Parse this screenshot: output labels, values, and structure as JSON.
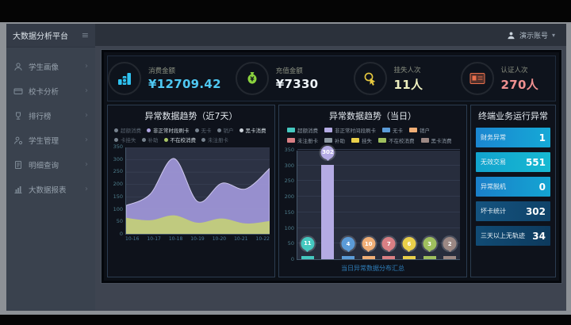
{
  "app_title": "大数据分析平台",
  "topbar": {
    "user_label": "演示账号"
  },
  "sidebar": {
    "items": [
      {
        "id": "student-portrait",
        "icon": "student-icon",
        "label": "学生画像"
      },
      {
        "id": "card-analysis",
        "icon": "card-icon",
        "label": "校卡分析"
      },
      {
        "id": "ranking",
        "icon": "trophy-icon",
        "label": "排行榜"
      },
      {
        "id": "student-manage",
        "icon": "manage-icon",
        "label": "学生管理"
      },
      {
        "id": "detail-query",
        "icon": "doc-icon",
        "label": "明细查询"
      },
      {
        "id": "bigdata-report",
        "icon": "report-icon",
        "label": "大数据报表"
      }
    ]
  },
  "kpis": [
    {
      "id": "consume",
      "icon": "coin-stack-icon",
      "label": "消费金额",
      "value": "¥12709.42",
      "color": "#2fc3f2",
      "value_color": "#4fc8f2"
    },
    {
      "id": "recharge",
      "icon": "money-bag-icon",
      "label": "充值金额",
      "value": "¥7330",
      "color": "#8bd33e",
      "value_color": "#eef4f8"
    },
    {
      "id": "loss",
      "icon": "hand-click-icon",
      "label": "挂失人次",
      "value": "11人",
      "color": "#e7c93f",
      "value_color": "#eef0c0"
    },
    {
      "id": "auth",
      "icon": "id-card-icon",
      "label": "认证人次",
      "value": "270人",
      "color": "#ea6f4c",
      "value_color": "#f09090"
    }
  ],
  "chart_data": [
    {
      "type": "area",
      "title": "异常数据趋势（近7天）",
      "x": [
        "10-16",
        "10-17",
        "10-18",
        "10-19",
        "10-20",
        "10-21",
        "10-22"
      ],
      "ylim": [
        0,
        350
      ],
      "yticks": [
        0,
        50,
        100,
        150,
        200,
        250,
        300,
        350
      ],
      "grid": true,
      "legend_position": "top",
      "legend": [
        {
          "label": "超额消费",
          "color": "#4fc7bd",
          "active": false
        },
        {
          "label": "非正常时段刷卡",
          "color": "#b0a6e3",
          "active": true
        },
        {
          "label": "无卡",
          "color": "#6aa4de",
          "active": false
        },
        {
          "label": "销户",
          "color": "#f2b37c",
          "active": false
        },
        {
          "label": "黑卡消费",
          "color": "#cdd3da",
          "active": true
        },
        {
          "label": "卡挂失",
          "color": "#ecd24f",
          "active": false
        },
        {
          "label": "补助",
          "color": "#8b97a0",
          "active": false
        },
        {
          "label": "不在校消费",
          "color": "#a9c566",
          "active": true
        },
        {
          "label": "未注册卡",
          "color": "#dd8186",
          "active": false
        }
      ],
      "series": [
        {
          "name": "非正常时段刷卡",
          "color": "#9d95d6",
          "stroke": "#cfc9ee",
          "values": [
            115,
            160,
            305,
            130,
            205,
            182,
            265
          ]
        },
        {
          "name": "不在校消费",
          "color": "#c2cd7a",
          "stroke": "none",
          "values": [
            65,
            55,
            75,
            45,
            62,
            42,
            52
          ]
        }
      ]
    },
    {
      "type": "bar",
      "title": "异常数据趋势（当日）",
      "ylim": [
        0,
        350
      ],
      "yticks": [
        0,
        50,
        100,
        150,
        200,
        250,
        300,
        350
      ],
      "legend": [
        {
          "label": "超额消费",
          "color": "#45c8c0"
        },
        {
          "label": "非正常时间段刷卡",
          "color": "#b4abe4"
        },
        {
          "label": "无卡",
          "color": "#5b9bd8"
        },
        {
          "label": "销户",
          "color": "#f0ae76"
        },
        {
          "label": "未注册卡",
          "color": "#d97f84"
        },
        {
          "label": "补助",
          "color": "#8b97a0"
        },
        {
          "label": "挂失",
          "color": "#e9cf4a"
        },
        {
          "label": "不在校消费",
          "color": "#9fbf5e"
        },
        {
          "label": "黑卡消费",
          "color": "#9c8884"
        }
      ],
      "categories": [
        "超额消费",
        "非正常时间段刷卡",
        "无卡",
        "销户",
        "未注册卡",
        "挂失",
        "不在校消费",
        "黑卡消费"
      ],
      "values": [
        11,
        302,
        4,
        10,
        7,
        6,
        3,
        2
      ],
      "colors": [
        "#45c8c0",
        "#b4abe4",
        "#5b9bd8",
        "#f0ae76",
        "#d97f84",
        "#e9cf4a",
        "#9fbf5e",
        "#9c8884"
      ],
      "caption": "当日异常数据分布汇总"
    }
  ],
  "right_panel": {
    "title": "终端业务运行异常",
    "rows": [
      {
        "label": "财务异常",
        "value": "1"
      },
      {
        "label": "无效交易",
        "value": "551"
      },
      {
        "label": "异常脱机",
        "value": "0"
      },
      {
        "label": "坏卡统计",
        "value": "302"
      },
      {
        "label": "三天以上无轨迹",
        "value": "34"
      }
    ]
  }
}
